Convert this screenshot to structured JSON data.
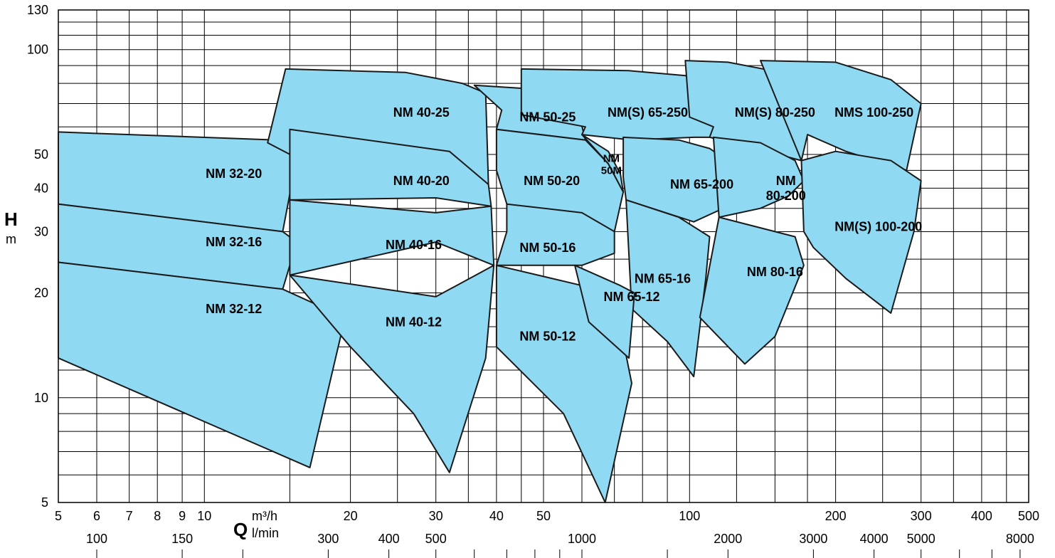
{
  "colors": {
    "region_fill": "#8fd9f2",
    "outline": "#1a1a1a",
    "grid": "#000000"
  },
  "chart_data": {
    "type": "area",
    "title": "",
    "y_axis": {
      "label": "H",
      "unit": "m",
      "scale": "log",
      "range": [
        5,
        130
      ],
      "ticks": [
        5,
        10,
        20,
        30,
        40,
        50,
        100,
        130
      ],
      "grid_values": [
        5,
        6,
        7,
        8,
        9,
        10,
        12,
        14,
        16,
        18,
        20,
        25,
        30,
        35,
        40,
        45,
        50,
        60,
        70,
        80,
        90,
        100,
        110,
        120,
        130
      ]
    },
    "x_axis": {
      "label": "Q",
      "scale": "log",
      "range": [
        5,
        500
      ],
      "primary_unit": "m³/h",
      "secondary_unit": "l/min",
      "ticks": [
        5,
        6,
        7,
        8,
        9,
        10,
        20,
        30,
        40,
        50,
        100,
        200,
        300,
        400,
        500
      ],
      "secondary_ticks": [
        100,
        150,
        300,
        400,
        500,
        1000,
        2000,
        3000,
        4000,
        5000,
        8000
      ],
      "secondary_tick_marks": [
        100,
        150,
        200,
        300,
        400,
        500,
        600,
        700,
        800,
        900,
        1000,
        1500,
        2000,
        3000,
        4000,
        5000,
        6000,
        7000,
        8000
      ],
      "grid_values": [
        5,
        6,
        7,
        8,
        9,
        10,
        15,
        20,
        25,
        30,
        35,
        40,
        45,
        50,
        60,
        70,
        80,
        90,
        100,
        125,
        150,
        175,
        200,
        250,
        300,
        350,
        400,
        450,
        500
      ]
    },
    "grid": true,
    "legend": "none",
    "series": [
      {
        "name": "NM 32-20",
        "label_at": [
          11.5,
          44
        ],
        "outline": [
          [
            5,
            58
          ],
          [
            14,
            55
          ],
          [
            15.5,
            49
          ],
          [
            14.5,
            30
          ],
          [
            5,
            36
          ]
        ]
      },
      {
        "name": "NM 32-16",
        "label_at": [
          11.5,
          28
        ],
        "outline": [
          [
            5,
            36
          ],
          [
            14.5,
            30
          ],
          [
            15.5,
            28
          ],
          [
            14.5,
            20.5
          ],
          [
            5,
            24.5
          ]
        ]
      },
      {
        "name": "NM 32-12",
        "label_at": [
          11.5,
          18
        ],
        "outline": [
          [
            5,
            24.5
          ],
          [
            14.5,
            20.5
          ],
          [
            19.5,
            17
          ],
          [
            16.5,
            6.3
          ],
          [
            5,
            13
          ]
        ]
      },
      {
        "name": "NM 40-25",
        "label_at": [
          28,
          66
        ],
        "outline": [
          [
            14.7,
            88
          ],
          [
            26,
            86
          ],
          [
            34,
            80
          ],
          [
            38,
            75
          ],
          [
            38.5,
            41
          ],
          [
            15,
            50
          ],
          [
            13.5,
            54
          ]
        ]
      },
      {
        "name": "NM 40-20",
        "label_at": [
          28,
          42
        ],
        "outline": [
          [
            15,
            59
          ],
          [
            32,
            51
          ],
          [
            38.5,
            41
          ],
          [
            39,
            35.5
          ],
          [
            30,
            37.5
          ],
          [
            15,
            37
          ]
        ]
      },
      {
        "name": "NM 40-16",
        "label_at": [
          27,
          27.5
        ],
        "outline": [
          [
            15,
            37
          ],
          [
            30,
            34
          ],
          [
            39,
            35.5
          ],
          [
            39.5,
            24
          ],
          [
            30,
            28
          ],
          [
            15,
            22.5
          ]
        ]
      },
      {
        "name": "NM 40-12",
        "label_at": [
          27,
          16.5
        ],
        "outline": [
          [
            15,
            22.5
          ],
          [
            30,
            19.5
          ],
          [
            39.5,
            24
          ],
          [
            38,
            13
          ],
          [
            32,
            6.1
          ],
          [
            27,
            9
          ],
          [
            20,
            14
          ]
        ]
      },
      {
        "name": "NM 50-25",
        "label_at": [
          51,
          64
        ],
        "outline": [
          [
            36,
            79
          ],
          [
            48,
            77
          ],
          [
            58,
            73
          ],
          [
            61,
            55
          ],
          [
            40,
            59
          ],
          [
            41,
            67
          ]
        ]
      },
      {
        "name": "NM 50-20",
        "label_at": [
          52,
          42
        ],
        "outline": [
          [
            40,
            59
          ],
          [
            61,
            55
          ],
          [
            68,
            47
          ],
          [
            73,
            39
          ],
          [
            70,
            30
          ],
          [
            42,
            36
          ],
          [
            40,
            45
          ]
        ]
      },
      {
        "name": "NM 50-16",
        "label_at": [
          51,
          27
        ],
        "outline": [
          [
            42,
            36
          ],
          [
            60,
            34
          ],
          [
            70,
            30
          ],
          [
            70,
            26
          ],
          [
            60,
            24
          ],
          [
            40,
            24
          ],
          [
            42,
            30
          ]
        ]
      },
      {
        "name": "NM 50-12",
        "label_at": [
          51,
          15
        ],
        "outline": [
          [
            40,
            24
          ],
          [
            60,
            21
          ],
          [
            72,
            16
          ],
          [
            76,
            11
          ],
          [
            67,
            5
          ],
          [
            55,
            9
          ],
          [
            40,
            14
          ]
        ]
      },
      {
        "name": "NM 50M",
        "label_lines": [
          "NM",
          "50M"
        ],
        "label_at": [
          69,
          47
        ],
        "outline": [
          [
            60,
            57
          ],
          [
            68,
            51
          ],
          [
            72,
            44
          ],
          [
            73,
            39
          ],
          [
            68,
            47
          ]
        ]
      },
      {
        "name": "NM(S) 65-250",
        "label_at": [
          82,
          66
        ],
        "outline": [
          [
            45,
            88
          ],
          [
            75,
            87
          ],
          [
            100,
            84
          ],
          [
            125,
            80
          ],
          [
            112,
            56
          ],
          [
            102,
            56
          ],
          [
            76,
            55
          ],
          [
            60,
            57
          ],
          [
            61,
            60
          ],
          [
            45,
            65
          ]
        ]
      },
      {
        "name": "NM 65-200",
        "label_at": [
          106,
          41
        ],
        "outline": [
          [
            73,
            56
          ],
          [
            95,
            55
          ],
          [
            110,
            52
          ],
          [
            128,
            45
          ],
          [
            128,
            37
          ],
          [
            102,
            32
          ],
          [
            74,
            37
          ],
          [
            73,
            43
          ]
        ]
      },
      {
        "name": "NM 65-16",
        "label_at": [
          88,
          22
        ],
        "outline": [
          [
            74,
            37
          ],
          [
            95,
            33
          ],
          [
            110,
            29
          ],
          [
            108,
            22
          ],
          [
            102,
            11.5
          ],
          [
            90,
            14.5
          ],
          [
            76,
            18
          ]
        ]
      },
      {
        "name": "NM 65-12",
        "label_at": [
          76,
          19.5
        ],
        "outline": [
          [
            58,
            24
          ],
          [
            72,
            21
          ],
          [
            77,
            20
          ],
          [
            75,
            13
          ],
          [
            62,
            16.5
          ]
        ]
      },
      {
        "name": "NM(S) 80-250",
        "label_at": [
          150,
          66
        ],
        "outline": [
          [
            98,
            93
          ],
          [
            120,
            92
          ],
          [
            148,
            87
          ],
          [
            175,
            78
          ],
          [
            170,
            48
          ],
          [
            130,
            53
          ],
          [
            110,
            56
          ],
          [
            112,
            60
          ],
          [
            100,
            64
          ]
        ]
      },
      {
        "name": "NM 80-200",
        "label_lines": [
          "NM",
          "80-200"
        ],
        "label_at": [
          158,
          40
        ],
        "outline": [
          [
            112,
            56
          ],
          [
            140,
            54
          ],
          [
            165,
            48
          ],
          [
            172,
            42
          ],
          [
            160,
            38
          ],
          [
            140,
            35
          ],
          [
            115,
            33
          ]
        ]
      },
      {
        "name": "NM 80-16",
        "label_at": [
          150,
          23
        ],
        "outline": [
          [
            115,
            33
          ],
          [
            150,
            30
          ],
          [
            165,
            29
          ],
          [
            172,
            24
          ],
          [
            150,
            15
          ],
          [
            130,
            12.5
          ],
          [
            105,
            17
          ]
        ]
      },
      {
        "name": "NMS 100-250",
        "label_at": [
          240,
          66
        ],
        "outline": [
          [
            140,
            93
          ],
          [
            200,
            92
          ],
          [
            260,
            82
          ],
          [
            300,
            70
          ],
          [
            280,
            45
          ],
          [
            210,
            51
          ],
          [
            175,
            57
          ],
          [
            170,
            48
          ]
        ]
      },
      {
        "name": "NM(S) 100-200",
        "label_at": [
          245,
          31
        ],
        "outline": [
          [
            170,
            48
          ],
          [
            200,
            51
          ],
          [
            260,
            48
          ],
          [
            300,
            42
          ],
          [
            290,
            30
          ],
          [
            260,
            17.5
          ],
          [
            210,
            22
          ],
          [
            180,
            27
          ],
          [
            172,
            30
          ]
        ]
      }
    ]
  }
}
